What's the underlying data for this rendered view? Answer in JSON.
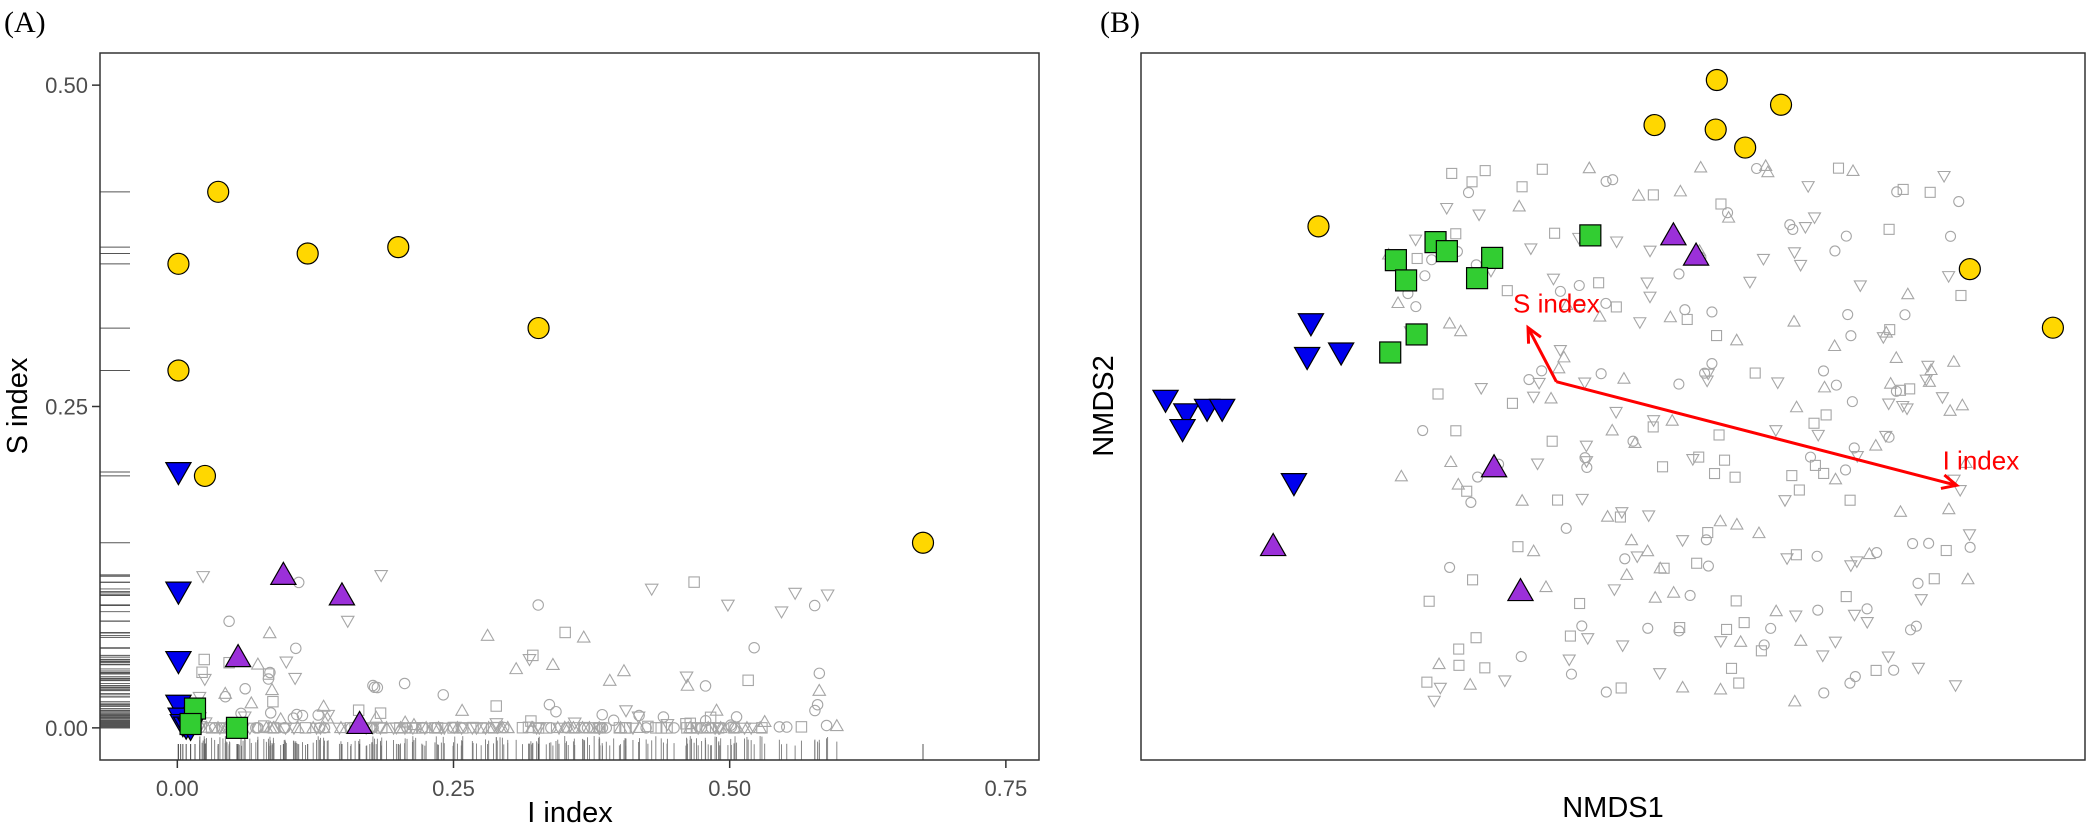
{
  "colors": {
    "circle": "#FFD700",
    "square": "#32CD32",
    "triangle_up": "#9B30D9",
    "triangle_down": "#0000EE",
    "background_points": "#a6a6a6",
    "vector": "#ff0000"
  },
  "chart_data": [
    {
      "type": "scatter",
      "panel_label": "(A)",
      "xlabel": "I index",
      "ylabel": "S index",
      "xlim": [
        -0.07,
        0.78
      ],
      "ylim": [
        -0.025,
        0.525
      ],
      "x_ticks": [
        0.0,
        0.25,
        0.5,
        0.75
      ],
      "x_tick_labels": [
        "0.00",
        "0.25",
        "0.50",
        "0.75"
      ],
      "y_ticks": [
        0.0,
        0.25,
        0.5
      ],
      "y_tick_labels": [
        "0.00",
        "0.25",
        "0.50"
      ],
      "rug": true,
      "highlighted": [
        {
          "shape": "circle",
          "x": 0.037,
          "y": 0.417
        },
        {
          "shape": "circle",
          "x": 0.001,
          "y": 0.361
        },
        {
          "shape": "circle",
          "x": 0.118,
          "y": 0.369
        },
        {
          "shape": "circle",
          "x": 0.2,
          "y": 0.374
        },
        {
          "shape": "circle",
          "x": 0.327,
          "y": 0.311
        },
        {
          "shape": "circle",
          "x": 0.001,
          "y": 0.278
        },
        {
          "shape": "circle",
          "x": 0.025,
          "y": 0.196
        },
        {
          "shape": "circle",
          "x": 0.675,
          "y": 0.144
        },
        {
          "shape": "triangle_down",
          "x": 0.001,
          "y": 0.199
        },
        {
          "shape": "triangle_down",
          "x": 0.001,
          "y": 0.106
        },
        {
          "shape": "triangle_down",
          "x": 0.001,
          "y": 0.052
        },
        {
          "shape": "triangle_down",
          "x": 0.001,
          "y": 0.018
        },
        {
          "shape": "triangle_down",
          "x": 0.003,
          "y": 0.008
        },
        {
          "shape": "triangle_down",
          "x": 0.005,
          "y": 0.003
        },
        {
          "shape": "triangle_down",
          "x": 0.008,
          "y": 0.001
        },
        {
          "shape": "triangle_down",
          "x": 0.012,
          "y": 0.0
        },
        {
          "shape": "triangle_up",
          "x": 0.096,
          "y": 0.119
        },
        {
          "shape": "triangle_up",
          "x": 0.149,
          "y": 0.103
        },
        {
          "shape": "triangle_up",
          "x": 0.055,
          "y": 0.055
        },
        {
          "shape": "triangle_up",
          "x": 0.165,
          "y": 0.003
        },
        {
          "shape": "square",
          "x": 0.054,
          "y": 0.0
        },
        {
          "shape": "square",
          "x": 0.016,
          "y": 0.015
        },
        {
          "shape": "square",
          "x": 0.012,
          "y": 0.003
        }
      ]
    },
    {
      "type": "scatter",
      "panel_label": "(B)",
      "xlabel": "NMDS1",
      "ylabel": "NMDS2",
      "xlim": [
        -1.15,
        1.35
      ],
      "ylim": [
        -0.72,
        0.85
      ],
      "x_ticks": [],
      "y_ticks": [],
      "highlighted": [
        {
          "shape": "circle",
          "x": 0.375,
          "y": 0.79
        },
        {
          "shape": "circle",
          "x": 0.545,
          "y": 0.735
        },
        {
          "shape": "circle",
          "x": 0.21,
          "y": 0.69
        },
        {
          "shape": "circle",
          "x": 0.372,
          "y": 0.68
        },
        {
          "shape": "circle",
          "x": 0.45,
          "y": 0.64
        },
        {
          "shape": "circle",
          "x": -0.68,
          "y": 0.465
        },
        {
          "shape": "circle",
          "x": 1.045,
          "y": 0.37
        },
        {
          "shape": "circle",
          "x": 1.265,
          "y": 0.24
        },
        {
          "shape": "square",
          "x": -0.37,
          "y": 0.43
        },
        {
          "shape": "square",
          "x": -0.34,
          "y": 0.41
        },
        {
          "shape": "square",
          "x": -0.22,
          "y": 0.395
        },
        {
          "shape": "square",
          "x": -0.475,
          "y": 0.39
        },
        {
          "shape": "square",
          "x": -0.26,
          "y": 0.35
        },
        {
          "shape": "square",
          "x": -0.448,
          "y": 0.345
        },
        {
          "shape": "square",
          "x": -0.42,
          "y": 0.225
        },
        {
          "shape": "square",
          "x": -0.49,
          "y": 0.185
        },
        {
          "shape": "square",
          "x": 0.04,
          "y": 0.445
        },
        {
          "shape": "triangle_up",
          "x": 0.26,
          "y": 0.445
        },
        {
          "shape": "triangle_up",
          "x": 0.32,
          "y": 0.4
        },
        {
          "shape": "triangle_up",
          "x": -0.215,
          "y": -0.07
        },
        {
          "shape": "triangle_up",
          "x": -0.8,
          "y": -0.245
        },
        {
          "shape": "triangle_up",
          "x": -0.145,
          "y": -0.345
        },
        {
          "shape": "triangle_down",
          "x": -0.7,
          "y": 0.25
        },
        {
          "shape": "triangle_down",
          "x": -0.71,
          "y": 0.175
        },
        {
          "shape": "triangle_down",
          "x": -0.62,
          "y": 0.185
        },
        {
          "shape": "triangle_down",
          "x": -1.085,
          "y": 0.08
        },
        {
          "shape": "triangle_down",
          "x": -1.03,
          "y": 0.05
        },
        {
          "shape": "triangle_down",
          "x": -0.975,
          "y": 0.06
        },
        {
          "shape": "triangle_down",
          "x": -0.935,
          "y": 0.06
        },
        {
          "shape": "triangle_down",
          "x": -1.04,
          "y": 0.015
        },
        {
          "shape": "triangle_down",
          "x": -0.745,
          "y": -0.105
        }
      ],
      "vectors": [
        {
          "label": "S index",
          "from": [
            -0.05,
            0.12
          ],
          "to": [
            -0.125,
            0.24
          ]
        },
        {
          "label": "I index",
          "from": [
            -0.05,
            0.12
          ],
          "to": [
            1.01,
            -0.11
          ]
        }
      ]
    }
  ]
}
